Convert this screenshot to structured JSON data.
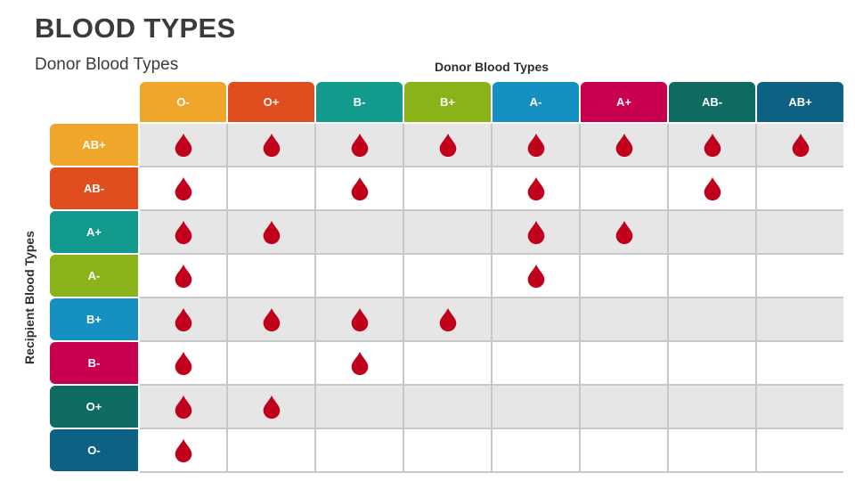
{
  "title": "BLOOD TYPES",
  "subtitle": "Donor Blood Types",
  "donor_axis_label": "Donor Blood Types",
  "recipient_axis_label": "Recipient Blood Types",
  "drop_color": "#c1001b",
  "donors": [
    {
      "label": "O-",
      "color": "#f0a62b"
    },
    {
      "label": "O+",
      "color": "#e04e1f"
    },
    {
      "label": "B-",
      "color": "#129a8c"
    },
    {
      "label": "B+",
      "color": "#8ab31a"
    },
    {
      "label": "A-",
      "color": "#1690c1"
    },
    {
      "label": "A+",
      "color": "#c8004f"
    },
    {
      "label": "AB-",
      "color": "#0f6b62"
    },
    {
      "label": "AB+",
      "color": "#0d6182"
    }
  ],
  "recipients": [
    {
      "label": "AB+",
      "color": "#f0a62b",
      "compatible": [
        true,
        true,
        true,
        true,
        true,
        true,
        true,
        true
      ]
    },
    {
      "label": "AB-",
      "color": "#e04e1f",
      "compatible": [
        true,
        false,
        true,
        false,
        true,
        false,
        true,
        false
      ]
    },
    {
      "label": "A+",
      "color": "#129a8c",
      "compatible": [
        true,
        true,
        false,
        false,
        true,
        true,
        false,
        false
      ]
    },
    {
      "label": "A-",
      "color": "#8ab31a",
      "compatible": [
        true,
        false,
        false,
        false,
        true,
        false,
        false,
        false
      ]
    },
    {
      "label": "B+",
      "color": "#1690c1",
      "compatible": [
        true,
        true,
        true,
        true,
        false,
        false,
        false,
        false
      ]
    },
    {
      "label": "B-",
      "color": "#c8004f",
      "compatible": [
        true,
        false,
        true,
        false,
        false,
        false,
        false,
        false
      ]
    },
    {
      "label": "O+",
      "color": "#0f6b62",
      "compatible": [
        true,
        true,
        false,
        false,
        false,
        false,
        false,
        false
      ]
    },
    {
      "label": "O-",
      "color": "#0d6182",
      "compatible": [
        true,
        false,
        false,
        false,
        false,
        false,
        false,
        false
      ]
    }
  ]
}
